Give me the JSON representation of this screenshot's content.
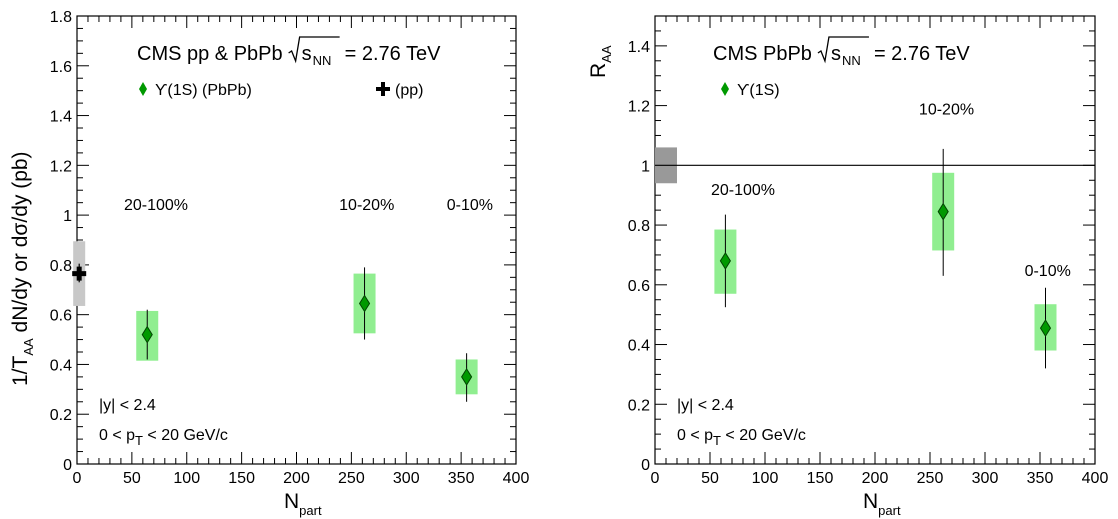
{
  "colors": {
    "systematic_box": "#90ee90",
    "marker": "#009900",
    "pp_box": "#c8c8c8",
    "global_box": "#999999",
    "axis": "#000000"
  },
  "chart_data": [
    {
      "type": "scatter",
      "panel": "left",
      "title": "CMS pp & PbPb",
      "title_energy": "= 2.76 TeV",
      "ylabel": "1/T",
      "ylabel_sub": "AA",
      "ylabel_rest": " dN/dy  or  dσ/dy (pb)",
      "xlabel": "N",
      "xlabel_sub": "part",
      "xlim": [
        0,
        400
      ],
      "ylim": [
        0,
        1.8
      ],
      "xticks": [
        0,
        50,
        100,
        150,
        200,
        250,
        300,
        350,
        400
      ],
      "xtick_labels": [
        "0",
        "50",
        "100",
        "150",
        "200",
        "250",
        "300",
        "350",
        "400"
      ],
      "yticks": [
        0,
        0.2,
        0.4,
        0.6,
        0.8,
        1,
        1.2,
        1.4,
        1.6,
        1.8
      ],
      "ytick_labels": [
        "0",
        "0.2",
        "0.4",
        "0.6",
        "0.8",
        "1",
        "1.2",
        "1.4",
        "1.6",
        "1.8"
      ],
      "legend": [
        {
          "marker": "diamond",
          "label": "ϒ(1S) (PbPb)"
        },
        {
          "marker": "cross",
          "label": "(pp)"
        }
      ],
      "cuts": [
        "|y| < 2.4",
        "0 < p",
        "T",
        " < 20 GeV/c"
      ],
      "points": [
        {
          "x": 64,
          "y": 0.52,
          "stat_lo": 0.42,
          "stat_hi": 0.62,
          "syst_lo": 0.415,
          "syst_hi": 0.615
        },
        {
          "x": 262,
          "y": 0.645,
          "stat_lo": 0.5,
          "stat_hi": 0.79,
          "syst_lo": 0.525,
          "syst_hi": 0.765
        },
        {
          "x": 355,
          "y": 0.35,
          "stat_lo": 0.25,
          "stat_hi": 0.445,
          "syst_lo": 0.28,
          "syst_hi": 0.42
        }
      ],
      "pp_point": {
        "x": 2,
        "y": 0.765,
        "stat_lo": 0.73,
        "stat_hi": 0.805,
        "syst_lo": 0.635,
        "syst_hi": 0.895
      },
      "annotations": [
        {
          "text": "20-100%",
          "x": 72,
          "y": 1.02
        },
        {
          "text": "10-20%",
          "x": 264,
          "y": 1.02
        },
        {
          "text": "0-10%",
          "x": 358,
          "y": 1.02
        }
      ]
    },
    {
      "type": "scatter",
      "panel": "right",
      "title": "CMS PbPb",
      "title_energy": "= 2.76 TeV",
      "ylabel": "R",
      "ylabel_sub": "AA",
      "ylabel_rest": "",
      "xlabel": "N",
      "xlabel_sub": "part",
      "xlim": [
        0,
        400
      ],
      "ylim": [
        0,
        1.5
      ],
      "xticks": [
        0,
        50,
        100,
        150,
        200,
        250,
        300,
        350,
        400
      ],
      "xtick_labels": [
        "0",
        "50",
        "100",
        "150",
        "200",
        "250",
        "300",
        "350",
        "400"
      ],
      "yticks": [
        0,
        0.2,
        0.4,
        0.6,
        0.8,
        1,
        1.2,
        1.4
      ],
      "ytick_labels": [
        "0",
        "0.2",
        "0.4",
        "0.6",
        "0.8",
        "1",
        "1.2",
        "1.4"
      ],
      "legend": [
        {
          "marker": "diamond",
          "label": "ϒ(1S)"
        }
      ],
      "cuts": [
        "|y| < 2.4",
        "0 < p",
        "T",
        " < 20 GeV/c"
      ],
      "reference_line": 1,
      "global_box": {
        "x0": 0,
        "x1": 20,
        "y0": 0.94,
        "y1": 1.06
      },
      "points": [
        {
          "x": 64,
          "y": 0.68,
          "stat_lo": 0.525,
          "stat_hi": 0.835,
          "syst_lo": 0.57,
          "syst_hi": 0.785
        },
        {
          "x": 262,
          "y": 0.845,
          "stat_lo": 0.63,
          "stat_hi": 1.055,
          "syst_lo": 0.715,
          "syst_hi": 0.975
        },
        {
          "x": 355,
          "y": 0.455,
          "stat_lo": 0.32,
          "stat_hi": 0.59,
          "syst_lo": 0.38,
          "syst_hi": 0.535
        }
      ],
      "annotations": [
        {
          "text": "20-100%",
          "x": 80,
          "y": 0.9
        },
        {
          "text": "10-20%",
          "x": 265,
          "y": 1.17
        },
        {
          "text": "0-10%",
          "x": 357,
          "y": 0.63
        }
      ]
    }
  ]
}
